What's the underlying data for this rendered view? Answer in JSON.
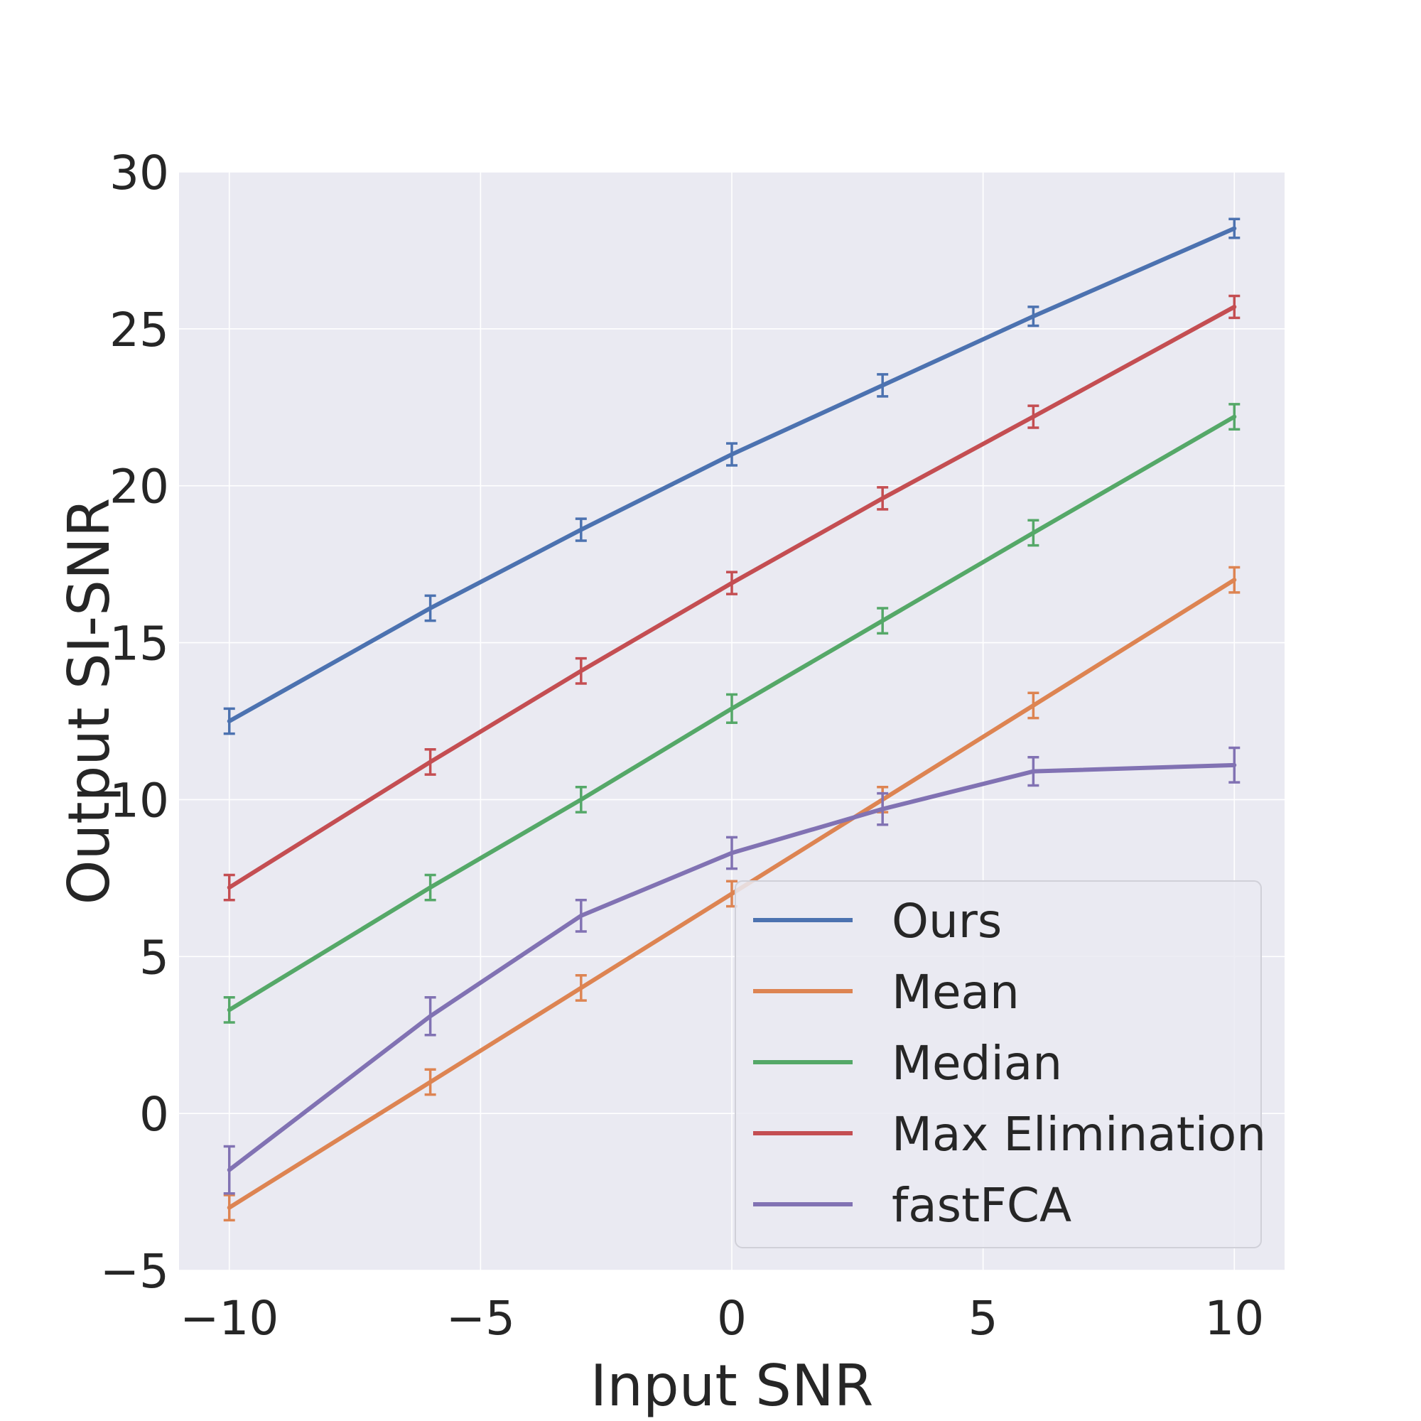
{
  "chart_data": {
    "type": "line",
    "xlabel": "Input SNR",
    "ylabel": "Output SI-SNR",
    "xlim": [
      -11,
      11
    ],
    "ylim": [
      -5,
      30
    ],
    "xticks": [
      -10,
      -5,
      0,
      5,
      10
    ],
    "yticks": [
      -5,
      0,
      5,
      10,
      15,
      20,
      25,
      30
    ],
    "xtick_labels": [
      "−10",
      "−5",
      "0",
      "5",
      "10"
    ],
    "ytick_labels": [
      "−5",
      "0",
      "5",
      "10",
      "15",
      "20",
      "25",
      "30"
    ],
    "grid": true,
    "legend_position": "lower-right",
    "x": [
      -10,
      -6,
      -3,
      0,
      3,
      6,
      10
    ],
    "series": [
      {
        "name": "Ours",
        "color": "#4c72b0",
        "values": [
          12.5,
          16.1,
          18.6,
          21.0,
          23.2,
          25.4,
          28.2
        ],
        "errors": [
          0.4,
          0.4,
          0.35,
          0.35,
          0.35,
          0.3,
          0.3
        ]
      },
      {
        "name": "Mean",
        "color": "#dd8452",
        "values": [
          -3.0,
          1.0,
          4.0,
          7.0,
          10.0,
          13.0,
          17.0
        ],
        "errors": [
          0.4,
          0.4,
          0.4,
          0.4,
          0.4,
          0.4,
          0.4
        ]
      },
      {
        "name": "Median",
        "color": "#55a868",
        "values": [
          3.3,
          7.2,
          10.0,
          12.9,
          15.7,
          18.5,
          22.2
        ],
        "errors": [
          0.4,
          0.4,
          0.4,
          0.45,
          0.4,
          0.4,
          0.4
        ]
      },
      {
        "name": "Max Elimination",
        "color": "#c44e52",
        "values": [
          7.2,
          11.2,
          14.1,
          16.9,
          19.6,
          22.2,
          25.7
        ],
        "errors": [
          0.4,
          0.4,
          0.4,
          0.35,
          0.35,
          0.35,
          0.35
        ]
      },
      {
        "name": "fastFCA",
        "color": "#8172b3",
        "values": [
          -1.8,
          3.1,
          6.3,
          8.3,
          9.7,
          10.9,
          11.1
        ],
        "errors": [
          0.75,
          0.6,
          0.5,
          0.5,
          0.5,
          0.45,
          0.55
        ]
      }
    ]
  }
}
